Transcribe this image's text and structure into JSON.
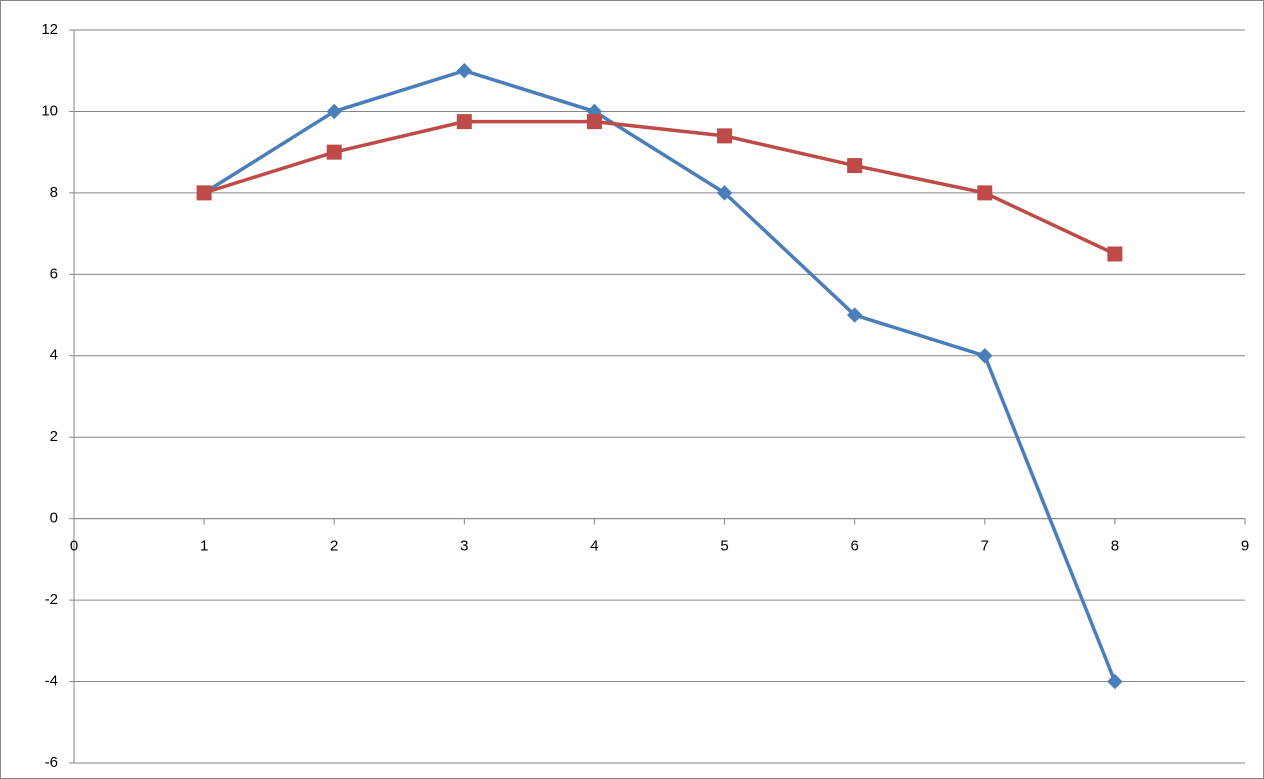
{
  "chart_data": {
    "type": "line",
    "x": [
      1,
      2,
      3,
      4,
      5,
      6,
      7,
      8
    ],
    "series": [
      {
        "color": "#4a7ebb",
        "marker": "diamond",
        "values": [
          8,
          10,
          11,
          10,
          8,
          5,
          4,
          -4
        ]
      },
      {
        "color": "#be4b48",
        "marker": "square",
        "values": [
          8,
          9,
          9.75,
          9.75,
          9.4,
          8.67,
          8,
          6.5
        ]
      }
    ],
    "xlim": [
      0,
      9
    ],
    "xticks": [
      0,
      1,
      2,
      3,
      4,
      5,
      6,
      7,
      8,
      9
    ],
    "ylim": [
      -6,
      12
    ],
    "yticks": [
      -6,
      -4,
      -2,
      0,
      2,
      4,
      6,
      8,
      10,
      12
    ],
    "grid": true
  }
}
